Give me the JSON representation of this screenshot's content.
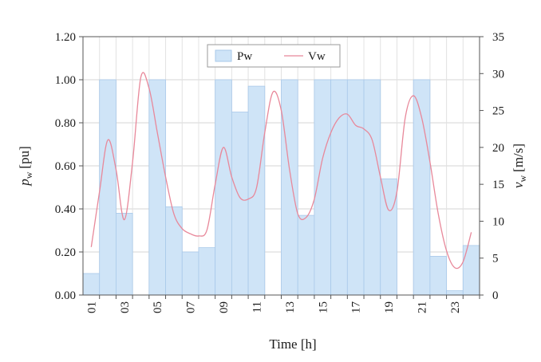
{
  "chart_data": {
    "type": "bar",
    "title": "",
    "xlabel": "Time [h]",
    "ylabel_left_main": "p",
    "ylabel_left_sub": "w",
    "ylabel_left_unit": "[pu]",
    "ylabel_right_main": "v",
    "ylabel_right_sub": "w",
    "ylabel_right_unit": "[m/s]",
    "x_tick_labels": [
      "01",
      "03",
      "05",
      "07",
      "09",
      "11",
      "13",
      "15",
      "17",
      "19",
      "21",
      "23"
    ],
    "hours": [
      1,
      2,
      3,
      4,
      5,
      6,
      7,
      8,
      9,
      10,
      11,
      12,
      13,
      14,
      15,
      16,
      17,
      18,
      19,
      20,
      21,
      22,
      23,
      24
    ],
    "ylim_left": [
      0,
      1.2
    ],
    "yticks_left": [
      "0.00",
      "0.20",
      "0.40",
      "0.60",
      "0.80",
      "1.00",
      "1.20"
    ],
    "ylim_right": [
      0,
      35
    ],
    "yticks_right": [
      "0",
      "5",
      "10",
      "15",
      "20",
      "25",
      "30",
      "35"
    ],
    "grid": true,
    "legend_position": "top-center",
    "series": [
      {
        "name": "Pw",
        "type": "bar",
        "axis": "left",
        "color": "#cfe4f7",
        "edge_color": "#a9c9ea",
        "values": [
          0.1,
          1.0,
          0.38,
          0.0,
          1.0,
          0.41,
          0.2,
          0.22,
          1.0,
          0.85,
          0.97,
          0.0,
          1.0,
          0.37,
          1.0,
          1.0,
          1.0,
          1.0,
          0.54,
          0.0,
          1.0,
          0.18,
          0.02,
          0.23
        ]
      },
      {
        "name": "Vw",
        "type": "line",
        "axis": "right",
        "color": "#e8889a",
        "x": [
          1,
          1.5,
          2,
          2.5,
          3,
          3.5,
          4,
          4.5,
          5,
          5.5,
          6,
          6.5,
          7,
          7.5,
          8,
          8.5,
          9,
          9.5,
          10,
          10.5,
          11,
          11.5,
          12,
          12.5,
          13,
          13.5,
          14,
          14.5,
          15,
          15.5,
          16,
          16.5,
          17,
          17.5,
          18,
          18.5,
          19,
          19.5,
          20,
          20.5,
          21,
          21.5,
          22,
          22.5,
          23,
          23.5,
          24
        ],
        "values": [
          6.5,
          14,
          21,
          17,
          10.2,
          18,
          29.5,
          28,
          22,
          16,
          11,
          9,
          8.3,
          8,
          8.8,
          15,
          20,
          16,
          13.2,
          13,
          14.5,
          22,
          27.5,
          25,
          17,
          11,
          10.5,
          13,
          18.5,
          22,
          24,
          24.5,
          23,
          22.5,
          21,
          16,
          11.5,
          14,
          24,
          27,
          24,
          18,
          11,
          6,
          3.7,
          4.5,
          8.5
        ]
      }
    ]
  }
}
